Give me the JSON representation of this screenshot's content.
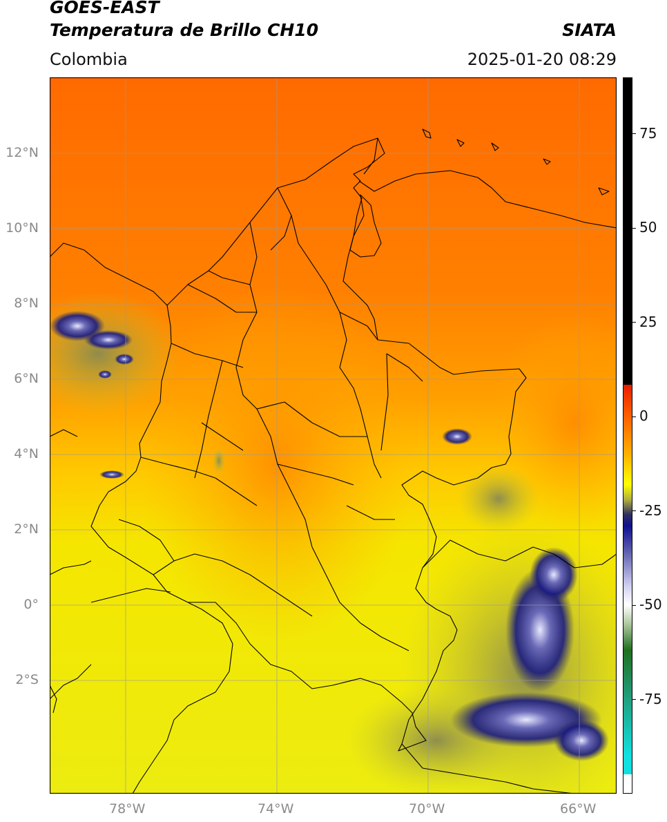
{
  "header": {
    "title_line1": "GOES-EAST",
    "title_line2": "Temperatura de Brillo CH10",
    "brand": "SIATA",
    "region": "Colombia",
    "timestamp": "2025-01-20 08:29"
  },
  "map": {
    "lon_range": [
      -80,
      -65
    ],
    "lat_range": [
      -5,
      14
    ],
    "lon_ticks": [
      -78,
      -74,
      -70,
      -66
    ],
    "lat_ticks": [
      12,
      10,
      8,
      6,
      4,
      2,
      0,
      -2
    ],
    "lon_tick_labels": [
      "78°W",
      "74°W",
      "70°W",
      "66°W"
    ],
    "lat_tick_labels": [
      "12°N",
      "10°N",
      "8°N",
      "6°N",
      "4°N",
      "2°N",
      "0°",
      "2°S"
    ],
    "grid": true,
    "borders_color": "#000000",
    "grid_color": "#9a9a9a"
  },
  "colorbar": {
    "orientation": "vertical",
    "placement": "right",
    "range": [
      -100,
      90
    ],
    "tick_values": [
      75,
      50,
      25,
      0,
      -25,
      -50,
      -75
    ],
    "tick_labels": [
      "75",
      "50",
      "25",
      "0",
      "-25",
      "-50",
      "-75"
    ],
    "stops": [
      {
        "value": 90,
        "color": "#000000"
      },
      {
        "value": 8.5,
        "color": "#000000"
      },
      {
        "value": 8.5,
        "color": "#e61e00"
      },
      {
        "value": 0,
        "color": "#ff6000"
      },
      {
        "value": -10,
        "color": "#ffb000"
      },
      {
        "value": -18,
        "color": "#ffff00"
      },
      {
        "value": -22,
        "color": "#b0b040"
      },
      {
        "value": -26,
        "color": "#303060"
      },
      {
        "value": -29,
        "color": "#101090"
      },
      {
        "value": -36,
        "color": "#6060b0"
      },
      {
        "value": -45,
        "color": "#d0d0f0"
      },
      {
        "value": -50,
        "color": "#ffffff"
      },
      {
        "value": -55,
        "color": "#b0c8a0"
      },
      {
        "value": -62,
        "color": "#207020"
      },
      {
        "value": -75,
        "color": "#20a080"
      },
      {
        "value": -90,
        "color": "#10e0e0"
      },
      {
        "value": -95,
        "color": "#10e0e0"
      },
      {
        "value": -95,
        "color": "#ffffff"
      },
      {
        "value": -100,
        "color": "#ffffff"
      }
    ]
  }
}
